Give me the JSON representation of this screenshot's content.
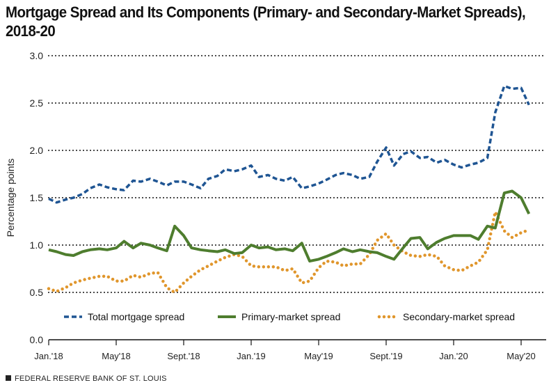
{
  "chart_data": {
    "type": "line",
    "title": "Mortgage Spread and Its Components (Primary- and Secondary-Market Spreads), 2018-20",
    "ylabel": "Percentage points",
    "xlabel": "",
    "ylim": [
      0,
      3.0
    ],
    "yticks": [
      "0.0",
      "0.5",
      "1.0",
      "1.5",
      "2.0",
      "2.5",
      "3.0"
    ],
    "ytick_values": [
      0,
      0.5,
      1.0,
      1.5,
      2.0,
      2.5,
      3.0
    ],
    "xticks": [
      {
        "label": "Jan.'18",
        "date": "2018-01-01"
      },
      {
        "label": "May'18",
        "date": "2018-05-01"
      },
      {
        "label": "Sept.'18",
        "date": "2018-09-01"
      },
      {
        "label": "Jan.'19",
        "date": "2019-01-01"
      },
      {
        "label": "May'19",
        "date": "2019-05-01"
      },
      {
        "label": "Sept.'19",
        "date": "2019-09-01"
      },
      {
        "label": "Jan.'20",
        "date": "2020-01-01"
      },
      {
        "label": "May'20",
        "date": "2020-05-01"
      }
    ],
    "grid": "horizontal dotted",
    "legend_position": "bottom",
    "x": [
      "2018-01-01",
      "2018-01-15",
      "2018-02-01",
      "2018-02-15",
      "2018-03-01",
      "2018-03-15",
      "2018-04-01",
      "2018-04-15",
      "2018-05-01",
      "2018-05-15",
      "2018-06-01",
      "2018-06-15",
      "2018-07-01",
      "2018-07-15",
      "2018-08-01",
      "2018-08-15",
      "2018-09-01",
      "2018-09-15",
      "2018-10-01",
      "2018-10-15",
      "2018-11-01",
      "2018-11-15",
      "2018-12-01",
      "2018-12-15",
      "2019-01-01",
      "2019-01-15",
      "2019-02-01",
      "2019-02-15",
      "2019-03-01",
      "2019-03-15",
      "2019-04-01",
      "2019-04-15",
      "2019-05-01",
      "2019-05-15",
      "2019-06-01",
      "2019-06-15",
      "2019-07-01",
      "2019-07-15",
      "2019-08-01",
      "2019-08-15",
      "2019-09-01",
      "2019-09-15",
      "2019-10-01",
      "2019-10-15",
      "2019-11-01",
      "2019-11-15",
      "2019-12-01",
      "2019-12-15",
      "2020-01-01",
      "2020-01-15",
      "2020-02-01",
      "2020-02-15",
      "2020-03-01",
      "2020-03-15",
      "2020-04-01",
      "2020-04-15",
      "2020-05-01",
      "2020-05-15"
    ],
    "series": [
      {
        "name": "Total mortgage spread",
        "color": "#1f5593",
        "style": "dashed",
        "values": [
          1.49,
          1.45,
          1.48,
          1.5,
          1.54,
          1.6,
          1.64,
          1.61,
          1.59,
          1.58,
          1.68,
          1.67,
          1.7,
          1.67,
          1.63,
          1.67,
          1.67,
          1.64,
          1.6,
          1.7,
          1.73,
          1.8,
          1.78,
          1.8,
          1.84,
          1.72,
          1.74,
          1.7,
          1.68,
          1.72,
          1.6,
          1.62,
          1.65,
          1.69,
          1.74,
          1.76,
          1.74,
          1.7,
          1.72,
          1.88,
          2.03,
          1.84,
          1.96,
          1.99,
          1.92,
          1.93,
          1.87,
          1.9,
          1.85,
          1.82,
          1.85,
          1.87,
          1.92,
          2.4,
          2.68,
          2.65,
          2.66,
          2.48
        ]
      },
      {
        "name": "Primary-market spread",
        "color": "#4e7d2e",
        "style": "solid",
        "values": [
          0.95,
          0.93,
          0.9,
          0.89,
          0.93,
          0.95,
          0.96,
          0.95,
          0.97,
          1.04,
          0.97,
          1.02,
          1.0,
          0.97,
          0.94,
          1.2,
          1.1,
          0.97,
          0.95,
          0.94,
          0.93,
          0.95,
          0.91,
          0.92,
          1.0,
          0.97,
          0.98,
          0.95,
          0.96,
          0.94,
          1.02,
          0.83,
          0.85,
          0.88,
          0.92,
          0.96,
          0.93,
          0.95,
          0.93,
          0.92,
          0.88,
          0.85,
          0.97,
          1.07,
          1.08,
          0.96,
          1.03,
          1.07,
          1.1,
          1.1,
          1.1,
          1.06,
          1.2,
          1.18,
          1.55,
          1.57,
          1.5,
          1.33
        ]
      },
      {
        "name": "Secondary-market spread",
        "color": "#e0962c",
        "style": "dotted",
        "values": [
          0.54,
          0.51,
          0.55,
          0.6,
          0.63,
          0.65,
          0.67,
          0.67,
          0.62,
          0.62,
          0.68,
          0.66,
          0.7,
          0.71,
          0.55,
          0.5,
          0.6,
          0.67,
          0.74,
          0.78,
          0.83,
          0.87,
          0.9,
          0.88,
          0.78,
          0.77,
          0.77,
          0.77,
          0.73,
          0.75,
          0.6,
          0.62,
          0.76,
          0.83,
          0.82,
          0.78,
          0.8,
          0.8,
          0.9,
          1.05,
          1.12,
          1.0,
          0.93,
          0.89,
          0.88,
          0.9,
          0.88,
          0.78,
          0.74,
          0.73,
          0.78,
          0.82,
          0.95,
          1.35,
          1.15,
          1.08,
          1.13,
          1.16
        ]
      }
    ]
  },
  "footer": {
    "source": "FEDERAL RESERVE BANK OF ST. LOUIS"
  }
}
